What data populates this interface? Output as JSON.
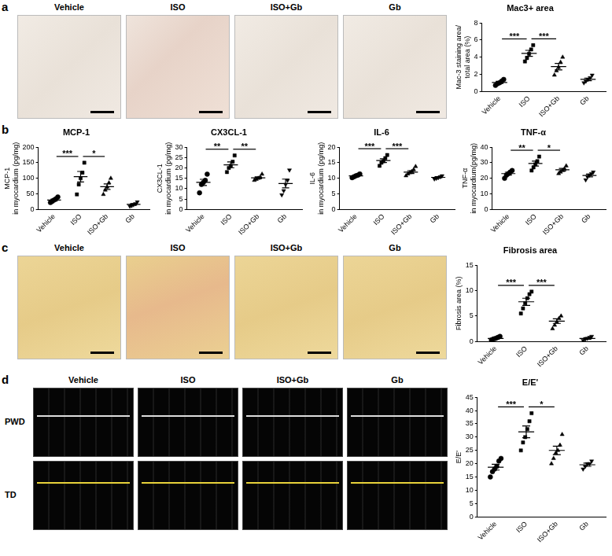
{
  "figure": {
    "panels": [
      {
        "label": "a",
        "image_titles": [
          "Vehicle",
          "ISO",
          "ISO+Gb",
          "Gb"
        ]
      },
      {
        "label": "b"
      },
      {
        "label": "c",
        "image_titles": [
          "Vehicle",
          "ISO",
          "ISO+Gb",
          "Gb"
        ]
      },
      {
        "label": "d",
        "image_titles": [
          "Vehicle",
          "ISO",
          "ISO+Gb",
          "Gb"
        ],
        "row_labels": [
          "PWD",
          "TD"
        ]
      }
    ]
  },
  "chart_data": [
    {
      "type": "scatter",
      "title": "Mac3+ area",
      "y_label": [
        "Mac-3 staining area/",
        "total area (%)"
      ],
      "categories": [
        "Vehicle",
        "ISO",
        "ISO+Gb",
        "Gb"
      ],
      "values": [
        [
          0.7,
          0.9,
          1.0,
          1.2,
          1.4
        ],
        [
          3.5,
          3.9,
          4.4,
          4.9,
          5.4
        ],
        [
          1.9,
          2.4,
          2.8,
          3.4,
          4.0
        ],
        [
          1.0,
          1.2,
          1.4,
          1.6,
          1.9
        ]
      ],
      "mean": [
        1.05,
        4.45,
        2.9,
        1.4
      ],
      "sem": [
        0.12,
        0.35,
        0.38,
        0.16
      ],
      "markers": [
        "circle",
        "square",
        "triangle",
        "triangle-down"
      ],
      "color": "#000000",
      "ylim": [
        0,
        8
      ],
      "yticks": [
        0,
        2,
        4,
        6,
        8
      ],
      "grid": false,
      "annotations": [
        {
          "from": "Vehicle",
          "to": "ISO",
          "text": "***"
        },
        {
          "from": "ISO",
          "to": "ISO+Gb",
          "text": "***"
        }
      ]
    },
    {
      "type": "scatter",
      "title": "MCP-1",
      "y_label": [
        "MCP-1",
        "in myocardium (pg/mg)"
      ],
      "categories": [
        "Vehicle",
        "ISO",
        "ISO+Gb",
        "Gb"
      ],
      "values": [
        [
          22,
          26,
          30,
          34,
          40
        ],
        [
          48,
          80,
          100,
          118,
          150
        ],
        [
          48,
          62,
          72,
          85,
          100
        ],
        [
          10,
          12,
          15,
          18,
          24
        ]
      ],
      "mean": [
        30,
        105,
        73,
        16
      ],
      "sem": [
        3,
        17,
        9,
        2.5
      ],
      "markers": [
        "circle",
        "square",
        "triangle",
        "triangle-down"
      ],
      "color": "#000000",
      "ylim": [
        0,
        200
      ],
      "yticks": [
        0,
        50,
        100,
        150,
        200
      ],
      "grid": false,
      "annotations": [
        {
          "from": "Vehicle",
          "to": "ISO",
          "text": "***"
        },
        {
          "from": "ISO",
          "to": "ISO+Gb",
          "text": "*"
        }
      ]
    },
    {
      "type": "scatter",
      "title": "CX3CL-1",
      "y_label": [
        "CX3CL-1",
        "in myocardium (pg/mg)"
      ],
      "categories": [
        "Vehicle",
        "ISO",
        "ISO+Gb",
        "Gb"
      ],
      "values": [
        [
          8,
          12,
          13,
          14,
          17
        ],
        [
          18,
          20,
          21,
          23,
          26
        ],
        [
          14,
          14.5,
          15,
          15.5,
          17
        ],
        [
          7,
          9,
          12,
          14,
          19
        ]
      ],
      "mean": [
        13,
        21.5,
        15.2,
        12.5
      ],
      "sem": [
        1.5,
        1.4,
        0.5,
        2.1
      ],
      "markers": [
        "circle",
        "square",
        "triangle",
        "triangle-down"
      ],
      "color": "#000000",
      "ylim": [
        0,
        30
      ],
      "yticks": [
        0,
        5,
        10,
        15,
        20,
        25,
        30
      ],
      "grid": false,
      "annotations": [
        {
          "from": "Vehicle",
          "to": "ISO",
          "text": "**"
        },
        {
          "from": "ISO",
          "to": "ISO+Gb",
          "text": "**"
        }
      ]
    },
    {
      "type": "scatter",
      "title": "IL-6",
      "y_label": [
        "IL-6",
        "in myocardium (pg/mg)"
      ],
      "categories": [
        "Vehicle",
        "ISO",
        "ISO+Gb",
        "Gb"
      ],
      "values": [
        [
          10.2,
          10.5,
          10.8,
          11.0,
          11.4
        ],
        [
          14,
          15,
          15.5,
          16.5,
          17.5
        ],
        [
          10.8,
          11.4,
          11.8,
          12.2,
          12.8,
          13.8
        ],
        [
          9.8,
          10,
          10.2,
          10.5,
          10.8
        ]
      ],
      "mean": [
        10.8,
        15.7,
        12,
        10.3
      ],
      "sem": [
        0.2,
        0.6,
        0.45,
        0.2
      ],
      "markers": [
        "circle",
        "square",
        "triangle",
        "triangle-down"
      ],
      "color": "#000000",
      "ylim": [
        0,
        20
      ],
      "yticks": [
        0,
        5,
        10,
        15,
        20
      ],
      "grid": false,
      "annotations": [
        {
          "from": "Vehicle",
          "to": "ISO",
          "text": "***"
        },
        {
          "from": "ISO",
          "to": "ISO+Gb",
          "text": "***"
        }
      ]
    },
    {
      "type": "scatter",
      "title": "TNF-α",
      "y_label": [
        "TNF-α",
        "in myocardium(pg/mg)"
      ],
      "categories": [
        "Vehicle",
        "ISO",
        "ISO+Gb",
        "Gb"
      ],
      "values": [
        [
          20,
          22,
          23,
          24,
          25
        ],
        [
          25,
          27,
          29,
          31,
          34
        ],
        [
          23,
          24,
          25,
          26,
          28
        ],
        [
          19,
          21,
          22,
          23,
          24
        ]
      ],
      "mean": [
        23,
        29.5,
        25.5,
        21.8
      ],
      "sem": [
        0.9,
        1.6,
        0.9,
        0.9
      ],
      "markers": [
        "circle",
        "square",
        "triangle",
        "triangle-down"
      ],
      "color": "#000000",
      "ylim": [
        0,
        40
      ],
      "yticks": [
        0,
        10,
        20,
        30,
        40
      ],
      "grid": false,
      "annotations": [
        {
          "from": "Vehicle",
          "to": "ISO",
          "text": "**"
        },
        {
          "from": "ISO",
          "to": "ISO+Gb",
          "text": "*"
        }
      ]
    },
    {
      "type": "scatter",
      "title": "Fibrosis area",
      "y_label": "Fibrosis area (%)",
      "categories": [
        "Vehicle",
        "ISO",
        "ISO+Gb",
        "Gb"
      ],
      "values": [
        [
          0.3,
          0.5,
          0.6,
          0.8,
          1.0
        ],
        [
          5.5,
          6.5,
          7.5,
          8.5,
          9.3,
          9.8
        ],
        [
          2.5,
          3.2,
          3.8,
          4.5,
          5.0
        ],
        [
          0.2,
          0.4,
          0.6,
          0.8,
          1.0
        ]
      ],
      "mean": [
        0.6,
        7.8,
        4.0,
        0.6
      ],
      "sem": [
        0.12,
        0.7,
        0.45,
        0.15
      ],
      "markers": [
        "circle",
        "square",
        "triangle",
        "triangle-down"
      ],
      "color": "#000000",
      "ylim": [
        0,
        15
      ],
      "yticks": [
        0,
        5,
        10,
        15
      ],
      "grid": false,
      "annotations": [
        {
          "from": "Vehicle",
          "to": "ISO",
          "text": "***"
        },
        {
          "from": "ISO",
          "to": "ISO+Gb",
          "text": "***"
        }
      ]
    },
    {
      "type": "scatter",
      "title": "E/E'",
      "y_label": "E/E'",
      "categories": [
        "Vehicle",
        "ISO",
        "ISO+Gb",
        "Gb"
      ],
      "values": [
        [
          15,
          17,
          18,
          19,
          21,
          22
        ],
        [
          25,
          28,
          30,
          33,
          36,
          39
        ],
        [
          20,
          22,
          24,
          25,
          27,
          31
        ],
        [
          18,
          19,
          20,
          20,
          21
        ]
      ],
      "mean": [
        18.7,
        32,
        25,
        19.6
      ],
      "sem": [
        1.1,
        2.2,
        1.6,
        0.6
      ],
      "markers": [
        "circle",
        "square",
        "triangle",
        "triangle-down"
      ],
      "color": "#000000",
      "ylim": [
        0,
        45
      ],
      "yticks": [
        0,
        5,
        10,
        15,
        20,
        25,
        30,
        35,
        40,
        45
      ],
      "grid": false,
      "annotations": [
        {
          "from": "Vehicle",
          "to": "ISO",
          "text": "***"
        },
        {
          "from": "ISO",
          "to": "ISO+Gb",
          "text": "*"
        }
      ]
    }
  ]
}
